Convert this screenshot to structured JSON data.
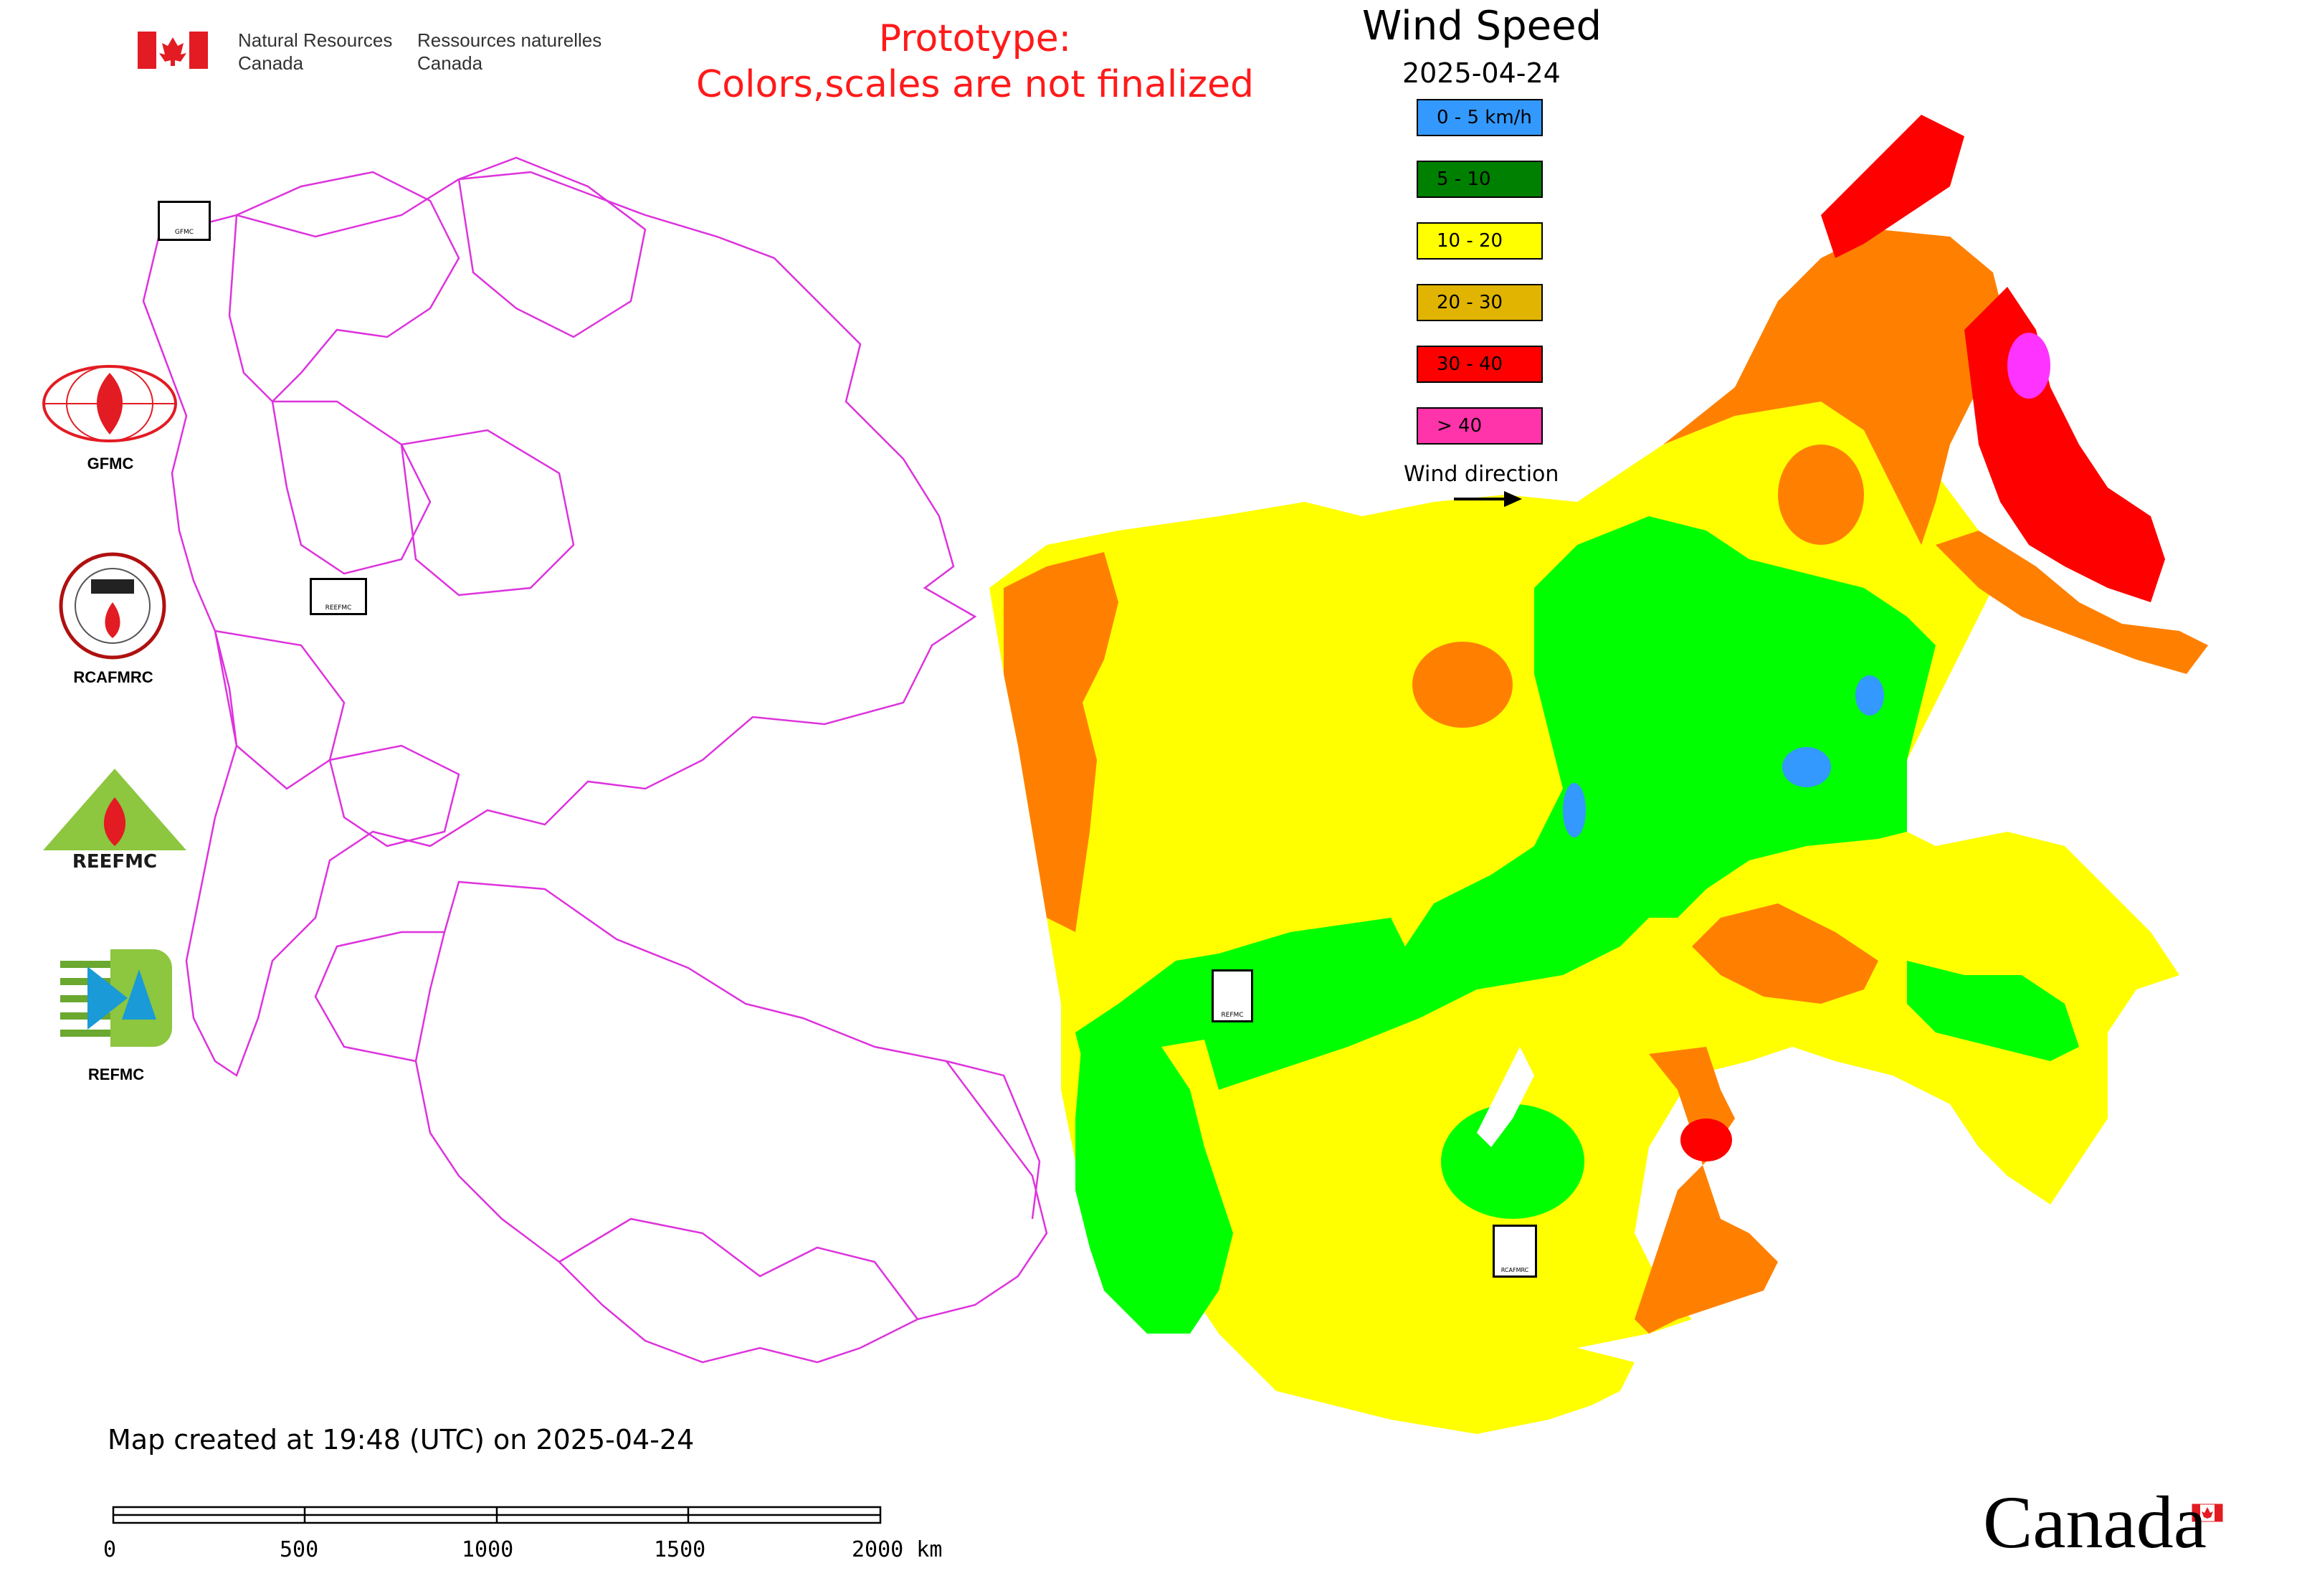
{
  "header": {
    "dept_en_line1": "Natural Resources",
    "dept_en_line2": "Canada",
    "dept_fr_line1": "Ressources naturelles",
    "dept_fr_line2": "Canada"
  },
  "notice": {
    "line1": "Prototype:",
    "line2": "Colors,scales are not finalized",
    "color": "#ff1a1a"
  },
  "map_title": "Wind Speed",
  "map_date": "2025-04-24",
  "legend": {
    "items": [
      {
        "label": "0 - 5 km/h",
        "color": "#3399ff"
      },
      {
        "label": "5 - 10",
        "color": "#008000"
      },
      {
        "label": "10 - 20",
        "color": "#ffff00"
      },
      {
        "label": "20 - 30",
        "color": "#e0b400"
      },
      {
        "label": "30 - 40",
        "color": "#ff0000"
      },
      {
        "label": "> 40",
        "color": "#ff33aa"
      }
    ],
    "wind_direction_label": "Wind direction"
  },
  "logos": [
    {
      "label": "GFMC",
      "icon": "gfmc-logo-icon"
    },
    {
      "label": "RCAFMRC",
      "icon": "rcafmrc-logo-icon"
    },
    {
      "label": "",
      "icon": "reefmc-logo-icon",
      "wordmark": "REEFMC"
    },
    {
      "label": "REFMC",
      "icon": "refmc-logo-icon"
    }
  ],
  "map_markers": [
    {
      "icon": "gfmc-marker-icon",
      "text": "GFMC"
    },
    {
      "icon": "reefmc-marker-icon",
      "text": "REEFMC"
    },
    {
      "icon": "refmc-marker-icon",
      "text": "REFMC"
    },
    {
      "icon": "rcafmrc-marker-icon",
      "text": "RCAFMRC"
    }
  ],
  "footer": {
    "created_text": "Map created at 19:48 (UTC) on 2025-04-24"
  },
  "scale_bar": {
    "ticks": [
      "0",
      "500",
      "1000",
      "1500",
      "2000 km"
    ]
  },
  "wordmark": "Canada",
  "colors": {
    "boundary": "#dd33dd",
    "zone_5_10_bright": "#00ff00",
    "zone_20_30_orange": "#ff8000"
  }
}
